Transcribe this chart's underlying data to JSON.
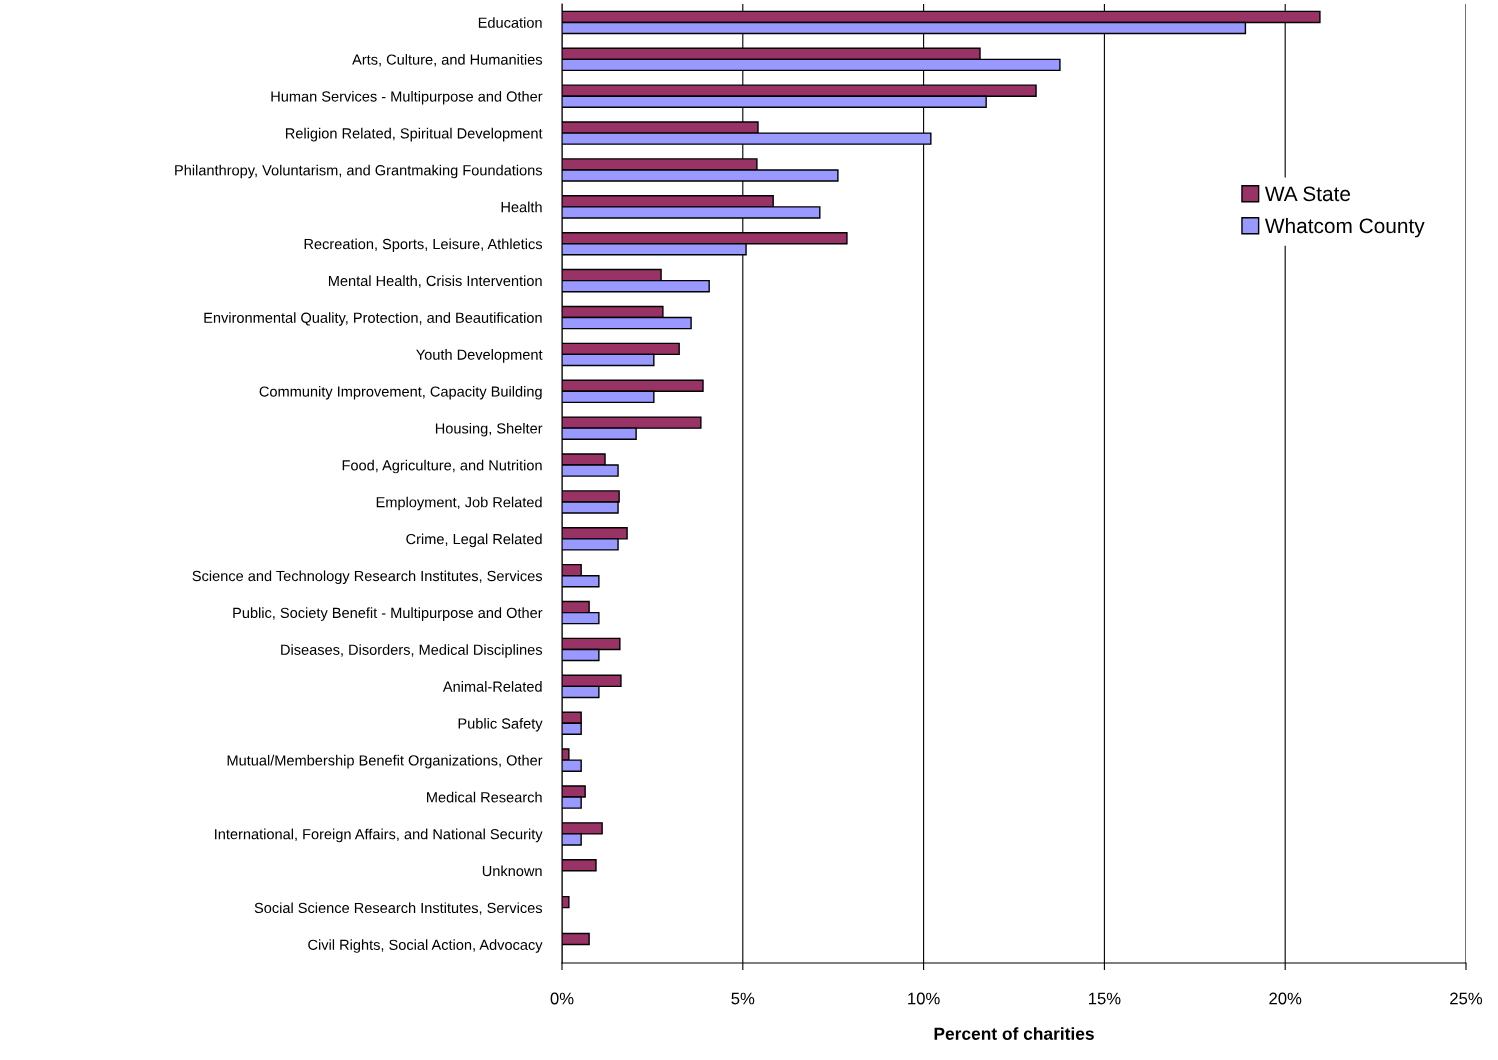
{
  "chart_data": {
    "type": "bar",
    "orientation": "horizontal",
    "xlabel": "Percent of charities",
    "categories": [
      "Education",
      "Arts, Culture, and Humanities",
      "Human Services - Multipurpose and Other",
      "Religion Related, Spiritual Development",
      "Philanthropy, Voluntarism, and Grantmaking Foundations",
      "Health",
      "Recreation, Sports, Leisure, Athletics",
      "Mental Health, Crisis Intervention",
      "Environmental Quality, Protection, and Beautification",
      "Youth Development",
      "Community Improvement, Capacity Building",
      "Housing, Shelter",
      "Food, Agriculture, and Nutrition",
      "Employment, Job Related",
      "Crime, Legal Related",
      "Science and Technology Research Institutes, Services",
      "Public, Society Benefit - Multipurpose and Other",
      "Diseases, Disorders, Medical Disciplines",
      "Animal-Related",
      "Public Safety",
      "Mutual/Membership Benefit Organizations, Other",
      "Medical Research",
      "International, Foreign Affairs, and National Security",
      "Unknown",
      "Social Science Research Institutes, Services",
      "Civil Rights, Social Action, Advocacy"
    ],
    "series": [
      {
        "name": "WA State",
        "color": "#993366",
        "values": [
          20.96,
          11.56,
          13.11,
          5.42,
          5.39,
          5.84,
          7.88,
          2.74,
          2.79,
          3.24,
          3.9,
          3.84,
          1.19,
          1.58,
          1.8,
          0.53,
          0.75,
          1.6,
          1.63,
          0.53,
          0.19,
          0.64,
          1.11,
          0.94,
          0.19,
          0.75
        ]
      },
      {
        "name": "Whatcom County",
        "color": "#9999ff",
        "values": [
          18.9,
          13.77,
          11.73,
          10.2,
          7.63,
          7.13,
          5.09,
          4.07,
          3.57,
          2.54,
          2.54,
          2.05,
          1.55,
          1.55,
          1.55,
          1.02,
          1.02,
          1.02,
          1.02,
          0.53,
          0.53,
          0.53,
          0.53,
          null,
          null,
          null
        ]
      }
    ],
    "xlim": [
      0,
      25
    ],
    "xticks": [
      {
        "value": 0,
        "label": "0%"
      },
      {
        "value": 5,
        "label": "5%"
      },
      {
        "value": 10,
        "label": "10%"
      },
      {
        "value": 15,
        "label": "15%"
      },
      {
        "value": 20,
        "label": "20%"
      },
      {
        "value": 25,
        "label": "25%"
      }
    ],
    "grid": "x",
    "legend": "top right"
  }
}
